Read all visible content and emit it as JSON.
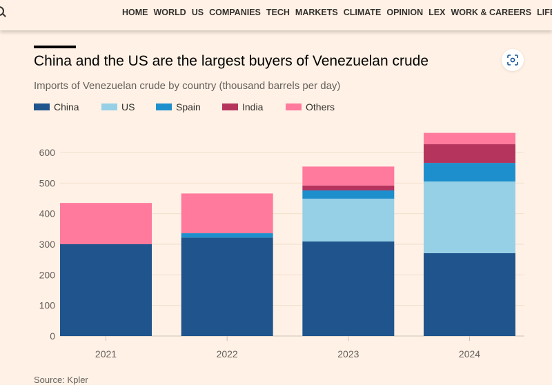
{
  "nav": {
    "items": [
      "HOME",
      "WORLD",
      "US",
      "COMPANIES",
      "TECH",
      "MARKETS",
      "CLIMATE",
      "OPINION",
      "LEX",
      "WORK & CAREERS",
      "LIFE"
    ]
  },
  "icons": {
    "search": "search-icon",
    "expand": "screenshot-expand-icon"
  },
  "source": "Source: Kpler",
  "chart_data": {
    "type": "bar",
    "stacked": true,
    "title": "China and the US are the largest buyers of Venezuelan crude",
    "subtitle": "Imports of Venezuelan crude by country (thousand barrels per day)",
    "xlabel": "",
    "ylabel": "",
    "categories": [
      "2021",
      "2022",
      "2023",
      "2024"
    ],
    "ylim": [
      0,
      670
    ],
    "yticks": [
      0,
      100,
      200,
      300,
      400,
      500,
      600
    ],
    "grid": true,
    "legend_placement": "top-left",
    "series": [
      {
        "name": "China",
        "color": "#1f558c",
        "values": [
          300,
          322,
          309,
          271
        ]
      },
      {
        "name": "US",
        "color": "#95d0e7",
        "values": [
          0,
          0,
          140,
          234
        ]
      },
      {
        "name": "Spain",
        "color": "#1e8fcd",
        "values": [
          0,
          14,
          27,
          61
        ]
      },
      {
        "name": "India",
        "color": "#b5345e",
        "values": [
          0,
          0,
          16,
          61
        ]
      },
      {
        "name": "Others",
        "color": "#ff7a9d",
        "values": [
          135,
          130,
          62,
          37
        ]
      }
    ]
  }
}
